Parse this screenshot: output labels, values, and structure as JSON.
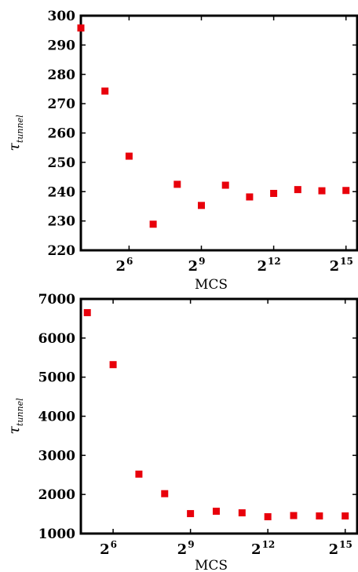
{
  "chart_data": [
    {
      "type": "scatter",
      "xlabel": "MCS",
      "ylabel": "τ",
      "ylabel_subscript": "tunnel",
      "x_scale": "log2",
      "x_ticks": [
        {
          "base": "2",
          "exp": "6",
          "value": 64
        },
        {
          "base": "2",
          "exp": "9",
          "value": 512
        },
        {
          "base": "2",
          "exp": "12",
          "value": 4096
        },
        {
          "base": "2",
          "exp": "15",
          "value": 32768
        }
      ],
      "y_ticks": [
        220,
        230,
        240,
        250,
        260,
        270,
        280,
        290,
        300
      ],
      "xlim": [
        16,
        45255
      ],
      "ylim": [
        220,
        300
      ],
      "marker_color": "#e8000b",
      "points": [
        {
          "x": 16,
          "y": 295.8
        },
        {
          "x": 32,
          "y": 274.3
        },
        {
          "x": 64,
          "y": 252.1
        },
        {
          "x": 128,
          "y": 228.9
        },
        {
          "x": 256,
          "y": 242.5
        },
        {
          "x": 512,
          "y": 235.3
        },
        {
          "x": 1024,
          "y": 242.2
        },
        {
          "x": 2048,
          "y": 238.2
        },
        {
          "x": 4096,
          "y": 239.4
        },
        {
          "x": 8192,
          "y": 240.7
        },
        {
          "x": 16384,
          "y": 240.3
        },
        {
          "x": 32768,
          "y": 240.4
        }
      ]
    },
    {
      "type": "scatter",
      "xlabel": "MCS",
      "ylabel": "τ",
      "ylabel_subscript": "tunnel",
      "x_scale": "log2",
      "x_ticks": [
        {
          "base": "2",
          "exp": "6",
          "value": 64
        },
        {
          "base": "2",
          "exp": "9",
          "value": 512
        },
        {
          "base": "2",
          "exp": "12",
          "value": 4096
        },
        {
          "base": "2",
          "exp": "15",
          "value": 32768
        }
      ],
      "y_ticks": [
        1000,
        2000,
        3000,
        4000,
        5000,
        6000,
        7000
      ],
      "xlim": [
        26.9,
        45255
      ],
      "ylim": [
        1000,
        7000
      ],
      "marker_color": "#e8000b",
      "points": [
        {
          "x": 32,
          "y": 6650
        },
        {
          "x": 64,
          "y": 5320
        },
        {
          "x": 128,
          "y": 2520
        },
        {
          "x": 256,
          "y": 2020
        },
        {
          "x": 512,
          "y": 1510
        },
        {
          "x": 1024,
          "y": 1570
        },
        {
          "x": 2048,
          "y": 1530
        },
        {
          "x": 4096,
          "y": 1430
        },
        {
          "x": 8192,
          "y": 1460
        },
        {
          "x": 16384,
          "y": 1450
        },
        {
          "x": 32768,
          "y": 1450
        }
      ]
    }
  ]
}
